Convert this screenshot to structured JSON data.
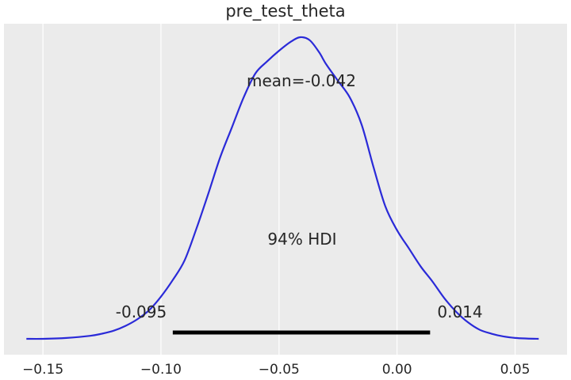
{
  "chart_data": {
    "type": "area",
    "title": "pre_test_theta",
    "xlabel": "",
    "ylabel": "",
    "xlim": [
      -0.1665,
      0.072
    ],
    "x_ticks": [
      -0.15,
      -0.1,
      -0.05,
      0.0,
      0.05
    ],
    "x_tick_labels": [
      "−0.15",
      "−0.10",
      "−0.05",
      "0.00",
      "0.05"
    ],
    "grid": "vertical",
    "colors": {
      "background": "#ebebeb",
      "grid": "#ffffff",
      "line": "#2a2ad8",
      "hdi": "#000000"
    },
    "series": [
      {
        "x": [
          -0.157,
          -0.15,
          -0.14,
          -0.13,
          -0.125,
          -0.12,
          -0.115,
          -0.11,
          -0.105,
          -0.1,
          -0.095,
          -0.09,
          -0.085,
          -0.08,
          -0.075,
          -0.07,
          -0.065,
          -0.06,
          -0.055,
          -0.05,
          -0.045,
          -0.041,
          -0.037,
          -0.033,
          -0.03,
          -0.025,
          -0.02,
          -0.015,
          -0.01,
          -0.005,
          0.0,
          0.005,
          0.01,
          0.015,
          0.02,
          0.025,
          0.03,
          0.035,
          0.04,
          0.045,
          0.05,
          0.055,
          0.06
        ],
        "y": [
          0.0,
          0.0,
          0.003,
          0.01,
          0.017,
          0.027,
          0.043,
          0.065,
          0.095,
          0.14,
          0.195,
          0.26,
          0.365,
          0.48,
          0.6,
          0.7,
          0.8,
          0.88,
          0.92,
          0.955,
          0.985,
          1.0,
          0.99,
          0.95,
          0.91,
          0.855,
          0.8,
          0.71,
          0.57,
          0.44,
          0.36,
          0.3,
          0.24,
          0.19,
          0.135,
          0.09,
          0.055,
          0.03,
          0.017,
          0.008,
          0.003,
          0.001,
          0.0
        ]
      }
    ],
    "mean_label": "mean=-0.042",
    "hdi": {
      "label": "94% HDI",
      "low": -0.095,
      "high": 0.014,
      "low_label": "-0.095",
      "high_label": "0.014"
    }
  }
}
